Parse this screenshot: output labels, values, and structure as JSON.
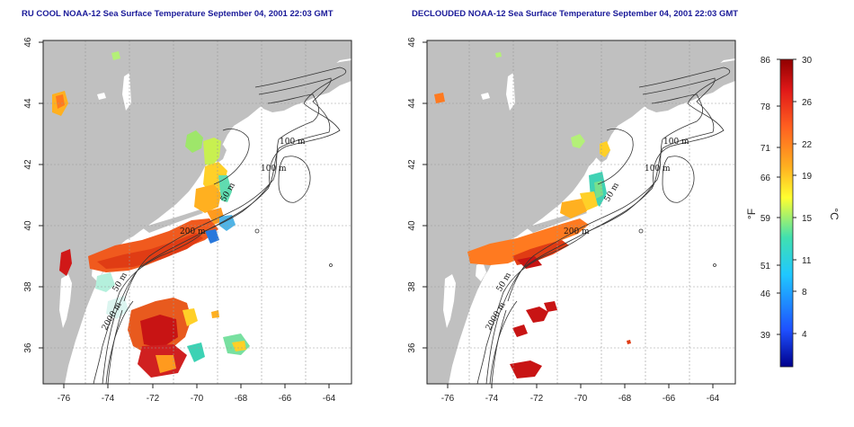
{
  "maps": [
    {
      "id": "left",
      "title": "RU COOL NOAA-12 Sea Surface Temperature September 04, 2001 22:03 GMT",
      "x_ticks": [
        "-76",
        "-74",
        "-72",
        "-70",
        "-68",
        "-66",
        "-64"
      ],
      "y_ticks": [
        "46",
        "44",
        "42",
        "40",
        "38",
        "36"
      ],
      "contour_labels": [
        "100 m",
        "100 m",
        "50 m",
        "200 m",
        "50 m",
        "2000 m"
      ]
    },
    {
      "id": "right",
      "title": "DECLOUDED NOAA-12 Sea Surface Temperature September 04, 2001 22:03 GMT",
      "x_ticks": [
        "-76",
        "-74",
        "-72",
        "-70",
        "-68",
        "-66",
        "-64"
      ],
      "y_ticks": [
        "46",
        "44",
        "42",
        "40",
        "38",
        "36"
      ],
      "contour_labels": [
        "100 m",
        "100 m",
        "50 m",
        "200 m",
        "50 m",
        "2000 m"
      ]
    }
  ],
  "colorbar": {
    "fahrenheit_labels": [
      "86",
      "78",
      "71",
      "66",
      "59",
      "51",
      "46",
      "39"
    ],
    "celsius_labels": [
      "30",
      "26",
      "22",
      "19",
      "15",
      "11",
      "8",
      "4"
    ],
    "fahrenheit_unit": "°F",
    "celsius_unit": "°C"
  },
  "colors": {
    "land": "#c0c0c0",
    "ocean": "#ffffff",
    "warm": "#e03c14",
    "hot": "#c81414",
    "mid": "#ff9a1e",
    "cool": "#3cd2b4",
    "cold": "#1e5adc",
    "title": "#1a1a99"
  }
}
